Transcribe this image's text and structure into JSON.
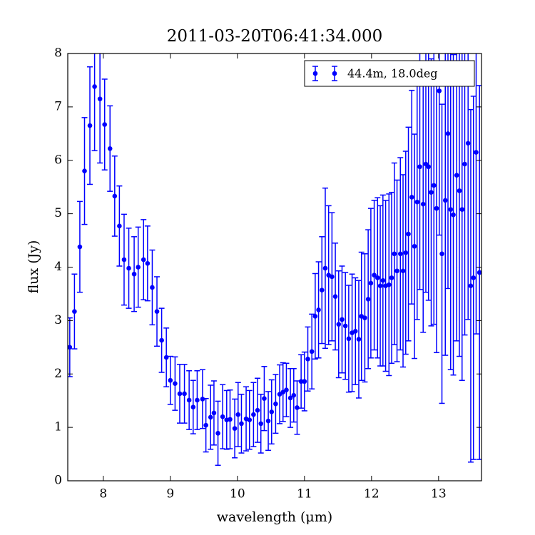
{
  "chart_data": {
    "type": "errorbar",
    "title": "2011-03-20T06:41:34.000",
    "xlabel": "wavelength (μm)",
    "ylabel": "flux (Jy)",
    "xlim": [
      7.47,
      13.64
    ],
    "ylim": [
      0,
      8
    ],
    "xticks": [
      8,
      9,
      10,
      11,
      12,
      13
    ],
    "yticks": [
      0,
      1,
      2,
      3,
      4,
      5,
      6,
      7,
      8
    ],
    "legend": "upper right",
    "series": [
      {
        "name": "44.4m, 18.0deg",
        "color": "#0000ff",
        "x": [
          7.5,
          7.57,
          7.65,
          7.72,
          7.8,
          7.87,
          7.95,
          8.02,
          8.1,
          8.17,
          8.24,
          8.31,
          8.38,
          8.46,
          8.52,
          8.6,
          8.66,
          8.73,
          8.8,
          8.87,
          8.94,
          9.0,
          9.07,
          9.14,
          9.21,
          9.28,
          9.34,
          9.4,
          9.48,
          9.53,
          9.6,
          9.65,
          9.71,
          9.78,
          9.84,
          9.89,
          9.96,
          10.01,
          10.06,
          10.13,
          10.18,
          10.24,
          10.3,
          10.35,
          10.4,
          10.46,
          10.51,
          10.57,
          10.63,
          10.68,
          10.73,
          10.79,
          10.84,
          10.89,
          10.95,
          11.0,
          11.05,
          11.11,
          11.16,
          11.21,
          11.26,
          11.31,
          11.36,
          11.41,
          11.46,
          11.51,
          11.56,
          11.61,
          11.66,
          11.71,
          11.76,
          11.81,
          11.85,
          11.9,
          11.95,
          11.99,
          12.04,
          12.09,
          12.13,
          12.17,
          12.21,
          12.26,
          12.3,
          12.34,
          12.38,
          12.43,
          12.47,
          12.51,
          12.55,
          12.6,
          12.64,
          12.68,
          12.72,
          12.77,
          12.81,
          12.85,
          12.89,
          12.93,
          12.97,
          13.01,
          13.05,
          13.1,
          13.14,
          13.18,
          13.22,
          13.27,
          13.31,
          13.35,
          13.39,
          13.44,
          13.48,
          13.52,
          13.56,
          13.61
        ],
        "values": [
          2.5,
          3.17,
          4.38,
          5.8,
          6.65,
          7.38,
          7.15,
          6.67,
          6.22,
          5.33,
          4.77,
          4.14,
          3.98,
          3.87,
          4.0,
          4.14,
          4.07,
          3.62,
          3.17,
          2.63,
          2.31,
          1.88,
          1.82,
          1.63,
          1.63,
          1.51,
          1.38,
          1.51,
          1.53,
          1.04,
          1.19,
          1.27,
          0.89,
          1.2,
          1.14,
          1.15,
          0.98,
          1.24,
          1.07,
          1.16,
          1.14,
          1.24,
          1.32,
          1.07,
          1.54,
          1.12,
          1.29,
          1.44,
          1.62,
          1.66,
          1.7,
          1.55,
          1.6,
          1.37,
          1.86,
          1.86,
          2.28,
          2.42,
          3.08,
          3.2,
          3.57,
          3.98,
          3.85,
          3.82,
          3.45,
          2.93,
          3.02,
          2.9,
          2.66,
          2.77,
          2.8,
          2.65,
          3.08,
          3.05,
          3.4,
          3.7,
          3.85,
          3.8,
          3.65,
          3.75,
          3.65,
          3.67,
          3.8,
          4.25,
          3.93,
          4.25,
          3.93,
          4.27,
          4.62,
          5.31,
          4.39,
          5.22,
          5.88,
          5.18,
          5.93,
          5.88,
          5.4,
          5.53,
          5.1,
          7.3,
          4.25,
          5.25,
          6.5,
          5.08,
          4.98,
          5.72,
          5.43,
          5.08,
          5.93,
          6.32,
          3.65,
          3.8,
          6.15,
          3.9
        ],
        "errors": [
          0.55,
          0.7,
          0.85,
          1.0,
          1.1,
          1.2,
          1.2,
          0.85,
          0.8,
          0.75,
          0.75,
          0.85,
          0.75,
          0.7,
          0.75,
          0.75,
          0.7,
          0.7,
          0.65,
          0.6,
          0.55,
          0.45,
          0.5,
          0.55,
          0.55,
          0.55,
          0.5,
          0.55,
          0.55,
          0.5,
          0.6,
          0.6,
          0.6,
          0.6,
          0.55,
          0.55,
          0.55,
          0.6,
          0.55,
          0.6,
          0.55,
          0.6,
          0.6,
          0.55,
          0.6,
          0.55,
          0.6,
          0.55,
          0.55,
          0.55,
          0.5,
          0.55,
          0.5,
          0.5,
          0.5,
          0.55,
          0.6,
          0.7,
          0.8,
          0.9,
          1.0,
          1.5,
          1.3,
          1.2,
          1.0,
          1.0,
          1.0,
          1.0,
          1.0,
          1.1,
          1.0,
          1.1,
          1.2,
          1.2,
          1.3,
          1.4,
          1.4,
          1.5,
          1.5,
          1.6,
          1.6,
          1.7,
          1.6,
          1.7,
          1.7,
          1.8,
          1.8,
          1.9,
          2.0,
          2.0,
          2.1,
          2.2,
          2.3,
          2.4,
          2.4,
          2.5,
          2.5,
          2.6,
          2.7,
          2.7,
          2.8,
          2.9,
          2.9,
          3.0,
          3.0,
          3.1,
          3.1,
          3.2,
          3.2,
          3.3,
          3.3,
          3.4,
          3.4,
          3.5
        ]
      }
    ]
  }
}
